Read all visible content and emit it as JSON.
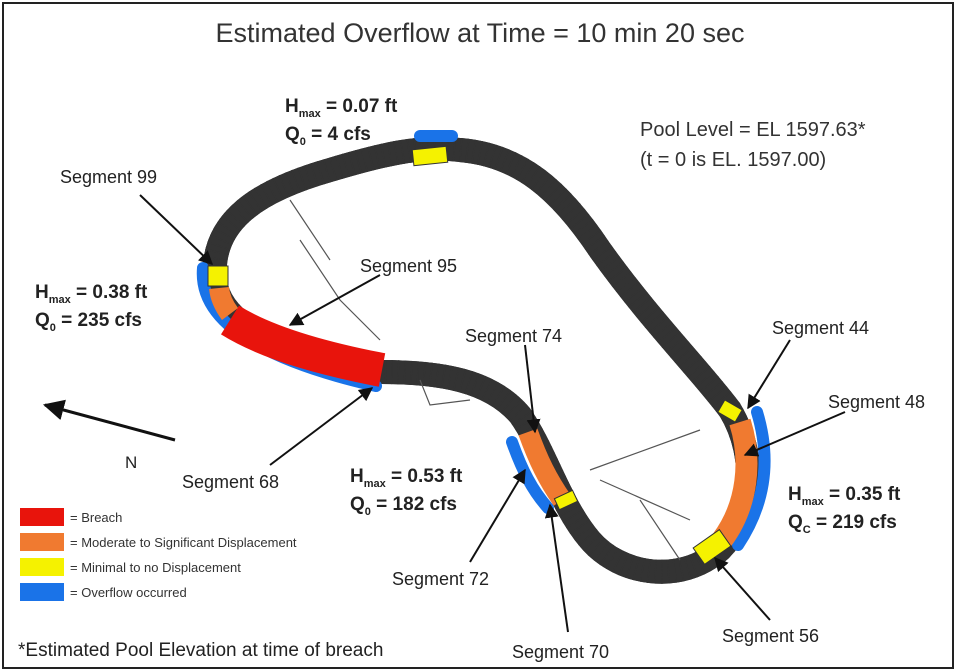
{
  "title": "Estimated Overflow at Time = 10 min 20 sec",
  "pool_level": {
    "line1": "Pool Level = EL 1597.63*",
    "line2": "(t = 0 is EL. 1597.00)"
  },
  "annotations": [
    {
      "h_symbol": "H",
      "h_sub": "max",
      "h_text": " = 0.07 ft",
      "q_symbol": "Q",
      "q_sub": "0",
      "q_text": " = 4 cfs"
    },
    {
      "h_symbol": "H",
      "h_sub": "max",
      "h_text": " = 0.38 ft",
      "q_symbol": "Q",
      "q_sub": "0",
      "q_text": " = 235 cfs"
    },
    {
      "h_symbol": "H",
      "h_sub": "max",
      "h_text": " = 0.53 ft",
      "q_symbol": "Q",
      "q_sub": "0",
      "q_text": " = 182 cfs"
    },
    {
      "h_symbol": "H",
      "h_sub": "max",
      "h_text": " = 0.35 ft",
      "q_symbol": "Q",
      "q_sub": "C",
      "q_text": " = 219 cfs"
    }
  ],
  "segments": [
    "Segment 99",
    "Segment 95",
    "Segment 74",
    "Segment 44",
    "Segment 48",
    "Segment 68",
    "Segment 72",
    "Segment 70",
    "Segment 56"
  ],
  "north": "N",
  "legend": [
    "= Breach",
    "= Moderate to Significant Displacement",
    "= Minimal to no Displacement",
    "= Overflow occurred"
  ],
  "footnote": "*Estimated Pool Elevation at time of breach"
}
